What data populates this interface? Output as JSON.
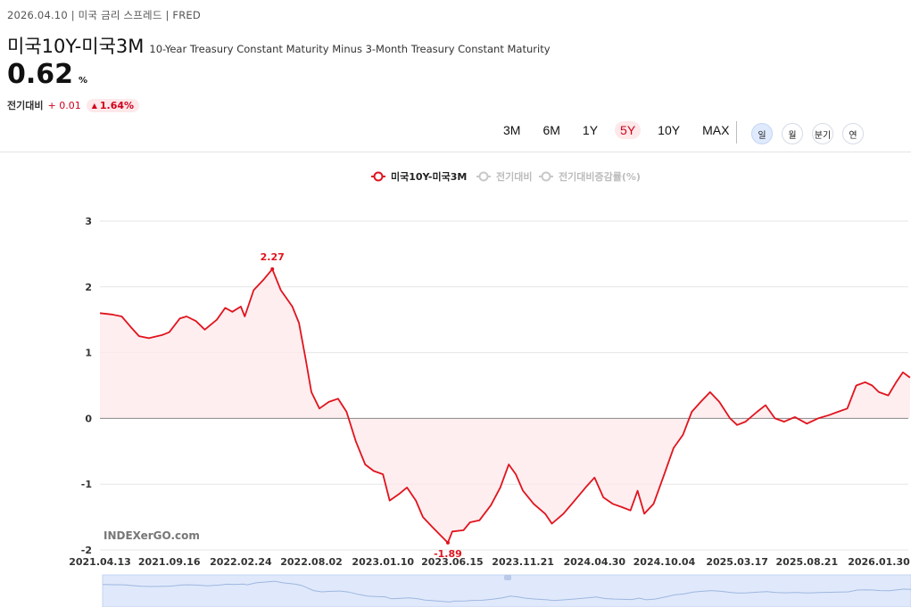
{
  "header": {
    "date": "2026.04.10",
    "category": "미국 금리 스프레드",
    "source": "FRED",
    "title": "미국10Y-미국3M",
    "subtitle": "10-Year Treasury Constant Maturity Minus 3-Month Treasury Constant Maturity",
    "value": "0.62",
    "unit": "%",
    "change_label": "전기대비",
    "change_value": "+ 0.01",
    "change_pct": "1.64%"
  },
  "periods": [
    "3M",
    "6M",
    "1Y",
    "5Y",
    "10Y",
    "MAX"
  ],
  "active_period": "5Y",
  "frequencies": [
    "일",
    "월",
    "분기",
    "연"
  ],
  "active_frequency": "일",
  "watermark": "INDEXerGO.com",
  "colors": {
    "accent": "#e0141e",
    "fill": "#fde8ea",
    "up": "#d0021b",
    "navigator": "#dfe9fb"
  },
  "chart_data": {
    "type": "area",
    "legend": [
      "미국10Y-미국3M",
      "전기대비",
      "전기대비증감률(%)"
    ],
    "legend_active": [
      true,
      false,
      false
    ],
    "legend_position": "top-center",
    "ylim": [
      -2,
      3
    ],
    "yticks": [
      3,
      2,
      1,
      0,
      -1,
      -2
    ],
    "xticks": [
      "2021.04.13",
      "2021.09.16",
      "2022.02.24",
      "2022.08.02",
      "2023.01.10",
      "2023.06.15",
      "2023.11.21",
      "2024.04.30",
      "2024.10.04",
      "2025.03.17",
      "2025.08.21",
      "2026.01.30"
    ],
    "annotations": [
      {
        "label": "2.27",
        "x": "2022.05.06",
        "y": 2.27
      },
      {
        "label": "-1.89",
        "x": "2023.06.05",
        "y": -1.89
      }
    ],
    "grid": "horizontal",
    "series": [
      {
        "name": "미국10Y-미국3M",
        "points": [
          [
            "2021.04.13",
            1.6
          ],
          [
            "2021.05.10",
            1.58
          ],
          [
            "2021.06.01",
            1.55
          ],
          [
            "2021.06.20",
            1.4
          ],
          [
            "2021.07.10",
            1.25
          ],
          [
            "2021.08.01",
            1.22
          ],
          [
            "2021.09.01",
            1.27
          ],
          [
            "2021.09.16",
            1.31
          ],
          [
            "2021.10.10",
            1.52
          ],
          [
            "2021.10.25",
            1.55
          ],
          [
            "2021.11.15",
            1.48
          ],
          [
            "2021.12.05",
            1.35
          ],
          [
            "2022.01.01",
            1.5
          ],
          [
            "2022.01.20",
            1.68
          ],
          [
            "2022.02.05",
            1.62
          ],
          [
            "2022.02.24",
            1.7
          ],
          [
            "2022.03.05",
            1.55
          ],
          [
            "2022.03.25",
            1.95
          ],
          [
            "2022.04.15",
            2.1
          ],
          [
            "2022.05.06",
            2.27
          ],
          [
            "2022.05.25",
            1.95
          ],
          [
            "2022.06.20",
            1.7
          ],
          [
            "2022.07.05",
            1.45
          ],
          [
            "2022.07.20",
            0.9
          ],
          [
            "2022.08.02",
            0.4
          ],
          [
            "2022.08.20",
            0.15
          ],
          [
            "2022.09.10",
            0.25
          ],
          [
            "2022.10.01",
            0.3
          ],
          [
            "2022.10.20",
            0.1
          ],
          [
            "2022.11.10",
            -0.35
          ],
          [
            "2022.12.01",
            -0.7
          ],
          [
            "2022.12.20",
            -0.8
          ],
          [
            "2023.01.10",
            -0.85
          ],
          [
            "2023.01.25",
            -1.25
          ],
          [
            "2023.02.15",
            -1.15
          ],
          [
            "2023.03.05",
            -1.05
          ],
          [
            "2023.03.25",
            -1.25
          ],
          [
            "2023.04.10",
            -1.5
          ],
          [
            "2023.05.01",
            -1.65
          ],
          [
            "2023.06.05",
            -1.89
          ],
          [
            "2023.06.15",
            -1.72
          ],
          [
            "2023.07.10",
            -1.7
          ],
          [
            "2023.07.25",
            -1.58
          ],
          [
            "2023.08.15",
            -1.55
          ],
          [
            "2023.09.10",
            -1.32
          ],
          [
            "2023.10.01",
            -1.05
          ],
          [
            "2023.10.20",
            -0.7
          ],
          [
            "2023.11.05",
            -0.85
          ],
          [
            "2023.11.21",
            -1.1
          ],
          [
            "2023.12.15",
            -1.3
          ],
          [
            "2024.01.10",
            -1.45
          ],
          [
            "2024.01.25",
            -1.6
          ],
          [
            "2024.02.20",
            -1.45
          ],
          [
            "2024.03.10",
            -1.3
          ],
          [
            "2024.04.10",
            -1.05
          ],
          [
            "2024.04.30",
            -0.9
          ],
          [
            "2024.05.20",
            -1.2
          ],
          [
            "2024.06.10",
            -1.3
          ],
          [
            "2024.07.01",
            -1.35
          ],
          [
            "2024.07.20",
            -1.4
          ],
          [
            "2024.08.05",
            -1.1
          ],
          [
            "2024.08.20",
            -1.45
          ],
          [
            "2024.09.10",
            -1.3
          ],
          [
            "2024.10.04",
            -0.85
          ],
          [
            "2024.10.25",
            -0.45
          ],
          [
            "2024.11.15",
            -0.25
          ],
          [
            "2024.12.05",
            0.1
          ],
          [
            "2024.12.25",
            0.25
          ],
          [
            "2025.01.15",
            0.4
          ],
          [
            "2025.02.05",
            0.25
          ],
          [
            "2025.03.01",
            0.0
          ],
          [
            "2025.03.17",
            -0.1
          ],
          [
            "2025.04.05",
            -0.05
          ],
          [
            "2025.05.01",
            0.1
          ],
          [
            "2025.05.20",
            0.2
          ],
          [
            "2025.06.10",
            0.0
          ],
          [
            "2025.07.01",
            -0.05
          ],
          [
            "2025.07.25",
            0.02
          ],
          [
            "2025.08.21",
            -0.08
          ],
          [
            "2025.09.15",
            0.0
          ],
          [
            "2025.10.10",
            0.05
          ],
          [
            "2025.10.30",
            0.1
          ],
          [
            "2025.11.20",
            0.15
          ],
          [
            "2025.12.10",
            0.5
          ],
          [
            "2025.12.30",
            0.55
          ],
          [
            "2026.01.15",
            0.5
          ],
          [
            "2026.01.30",
            0.4
          ],
          [
            "2026.02.20",
            0.35
          ],
          [
            "2026.03.10",
            0.55
          ],
          [
            "2026.03.25",
            0.7
          ],
          [
            "2026.04.10",
            0.62
          ]
        ]
      }
    ]
  }
}
